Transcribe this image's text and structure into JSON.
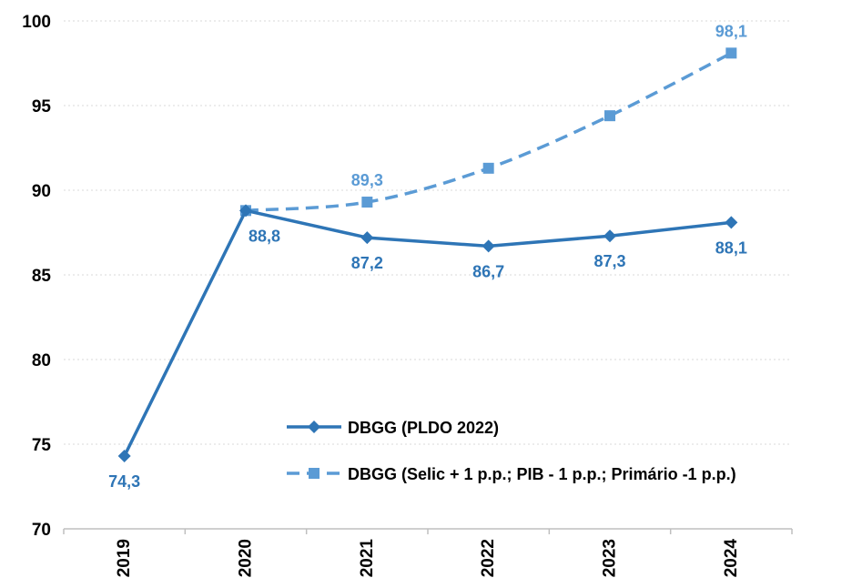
{
  "chart_data": {
    "type": "line",
    "x": [
      "2019",
      "2020",
      "2021",
      "2022",
      "2023",
      "2024"
    ],
    "ylim": [
      70,
      100
    ],
    "yticks": [
      70,
      75,
      80,
      85,
      90,
      95,
      100
    ],
    "grid": "horizontal dotted",
    "legend_position": "bottom-center",
    "series": [
      {
        "name": "DBGG (PLDO 2022)",
        "values": [
          74.3,
          88.8,
          87.2,
          86.7,
          87.3,
          88.1
        ],
        "labels": [
          "74,3",
          "88,8",
          "87,2",
          "86,7",
          "87,3",
          "88,1"
        ],
        "color": "#2E75B6",
        "style": "solid",
        "marker": "diamond"
      },
      {
        "name": "DBGG (Selic + 1 p.p.; PIB - 1 p.p.; Primário -1 p.p.)",
        "values": [
          null,
          88.8,
          89.3,
          91.3,
          94.4,
          98.1
        ],
        "labels": [
          null,
          null,
          "89,3",
          null,
          null,
          "98,1"
        ],
        "color": "#5B9BD5",
        "style": "dashed",
        "marker": "square"
      }
    ]
  }
}
